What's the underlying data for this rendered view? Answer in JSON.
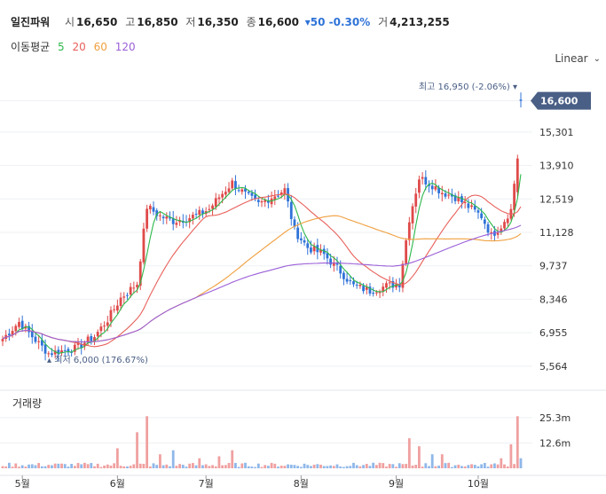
{
  "header": {
    "name": "일진파워",
    "open_label": "시",
    "open": "16,650",
    "high_label": "고",
    "high": "16,850",
    "low_label": "저",
    "low": "16,350",
    "close_label": "종",
    "close": "16,600",
    "change": "▾50 -0.30%",
    "volume_label": "거",
    "volume": "4,213,255"
  },
  "ma_legend": {
    "title": "이동평균",
    "items": [
      {
        "label": "5",
        "color": "#2db84b"
      },
      {
        "label": "20",
        "color": "#e8605a"
      },
      {
        "label": "60",
        "color": "#f0a040"
      },
      {
        "label": "120",
        "color": "#9b5fd8"
      }
    ]
  },
  "scale_mode": "Linear",
  "volume_title": "거래량",
  "colors": {
    "up": "#e04a4a",
    "down": "#2f73d8",
    "up_vol": "#f0a0a0",
    "down_vol": "#8fb8ea",
    "grid": "#eef0f4",
    "ma5": "#2db84b",
    "ma20": "#e8605a",
    "ma60": "#f0a040",
    "ma120": "#9b5fd8",
    "badge": "#4a5f86"
  },
  "chart_data": {
    "type": "candlestick",
    "x_ticks": [
      "5월",
      "6월",
      "7월",
      "8월",
      "9월",
      "10월"
    ],
    "x_tick_index": [
      6,
      35,
      62,
      91,
      120,
      145
    ],
    "price_ticks": [
      "16,600",
      "15,301",
      "13,910",
      "12,519",
      "11,128",
      "9,737",
      "8,346",
      "6,955",
      "5,564"
    ],
    "price_tick_values": [
      16600,
      15301,
      13910,
      12519,
      11128,
      9737,
      8346,
      6955,
      5564
    ],
    "ylim": [
      5300,
      17400
    ],
    "volume_ticks": [
      "25.3m",
      "12.6m"
    ],
    "volume_tick_values": [
      25.3,
      12.6
    ],
    "volume_max": 31,
    "current_price_label": "16,600",
    "current_price": 16600,
    "max_label": "최고 16,950 (-2.06%)",
    "max_value": 16950,
    "max_index": 158,
    "min_label": "최저 6,000 (176.67%)",
    "min_value": 6000,
    "min_index": 13,
    "anchors": [
      [
        0,
        6700
      ],
      [
        5,
        7400
      ],
      [
        11,
        6500
      ],
      [
        14,
        6100
      ],
      [
        22,
        6300
      ],
      [
        28,
        6800
      ],
      [
        32,
        7500
      ],
      [
        36,
        8400
      ],
      [
        41,
        9000
      ],
      [
        44,
        12200
      ],
      [
        48,
        11800
      ],
      [
        52,
        11600
      ],
      [
        56,
        11700
      ],
      [
        60,
        11900
      ],
      [
        63,
        12100
      ],
      [
        66,
        12600
      ],
      [
        70,
        13200
      ],
      [
        74,
        12700
      ],
      [
        78,
        12300
      ],
      [
        82,
        12600
      ],
      [
        86,
        12900
      ],
      [
        89,
        11200
      ],
      [
        93,
        10500
      ],
      [
        98,
        10200
      ],
      [
        103,
        9500
      ],
      [
        107,
        8900
      ],
      [
        112,
        8700
      ],
      [
        117,
        8900
      ],
      [
        121,
        9000
      ],
      [
        124,
        11700
      ],
      [
        127,
        13400
      ],
      [
        131,
        13100
      ],
      [
        134,
        12800
      ],
      [
        138,
        12600
      ],
      [
        142,
        12200
      ],
      [
        146,
        11800
      ],
      [
        149,
        11000
      ],
      [
        152,
        11400
      ],
      [
        155,
        12100
      ],
      [
        157,
        14200
      ],
      [
        158,
        16600
      ]
    ],
    "volume_spikes": [
      [
        35,
        10
      ],
      [
        41,
        18
      ],
      [
        44,
        26
      ],
      [
        48,
        7
      ],
      [
        52,
        9
      ],
      [
        60,
        5
      ],
      [
        66,
        6
      ],
      [
        70,
        9
      ],
      [
        124,
        15
      ],
      [
        127,
        11
      ],
      [
        131,
        7
      ],
      [
        134,
        7
      ],
      [
        152,
        5
      ],
      [
        155,
        12
      ],
      [
        157,
        26
      ],
      [
        158,
        5
      ]
    ]
  }
}
